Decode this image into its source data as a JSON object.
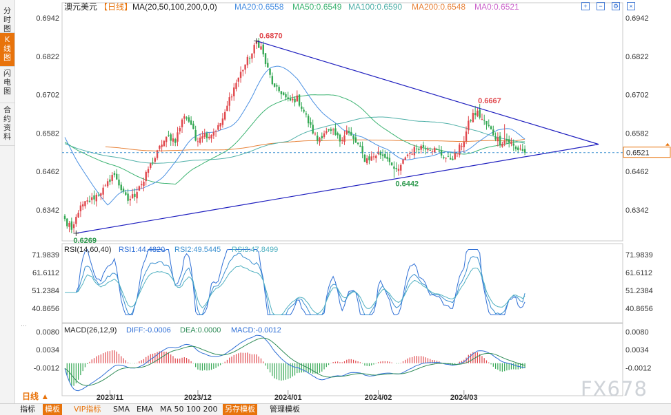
{
  "sidebar": {
    "tabs": [
      "分时图",
      "K线图",
      "闪电图",
      "合约资料"
    ],
    "active": 1
  },
  "header": {
    "symbol": "澳元美元",
    "period_tag": "【日线】",
    "ma_text": "MA(20,50,100,200,0,0)",
    "ma": [
      {
        "label": "MA20:0.6558",
        "color": "#4a90e2"
      },
      {
        "label": "MA50:0.6549",
        "color": "#3cb371"
      },
      {
        "label": "MA100:0.6590",
        "color": "#4fb0a8"
      },
      {
        "label": "MA200:0.6548",
        "color": "#e8833a"
      },
      {
        "label": "MA0:0.6521",
        "color": "#cc66cc"
      }
    ]
  },
  "colors": {
    "up": "#e0474c",
    "down": "#34a853",
    "trend": "#1f1fbf"
  },
  "chart_data": [
    {
      "type": "candlestick",
      "title": "澳元美元 日线",
      "x_ticks": [
        "2023/11",
        "2023/12",
        "2024/01",
        "2024/02",
        "2024/03"
      ],
      "y_ticks": [
        "0.6942",
        "0.6822",
        "0.6702",
        "0.6582",
        "0.6462",
        "0.6342"
      ],
      "ylim": [
        0.6245,
        0.6955
      ],
      "last_price": "0.6521",
      "high_label": "0.6870",
      "low_label": "0.6269",
      "mid_low_label": "0.6442",
      "recent_high_label": "0.6667",
      "anchors": [
        [
          0,
          0.631
        ],
        [
          1,
          0.6295
        ],
        [
          2,
          0.6298
        ],
        [
          3,
          0.6269
        ],
        [
          6,
          0.634
        ],
        [
          9,
          0.6362
        ],
        [
          12,
          0.6375
        ],
        [
          16,
          0.64
        ],
        [
          18,
          0.641
        ],
        [
          21,
          0.6452
        ],
        [
          23,
          0.644
        ],
        [
          26,
          0.639
        ],
        [
          28,
          0.6372
        ],
        [
          31,
          0.639
        ],
        [
          33,
          0.642
        ],
        [
          35,
          0.643
        ],
        [
          37,
          0.647
        ],
        [
          40,
          0.6505
        ],
        [
          43,
          0.655
        ],
        [
          46,
          0.657
        ],
        [
          49,
          0.656
        ],
        [
          53,
          0.664
        ],
        [
          56,
          0.661
        ],
        [
          58,
          0.656
        ],
        [
          61,
          0.658
        ],
        [
          64,
          0.6575
        ],
        [
          68,
          0.66
        ],
        [
          71,
          0.664
        ],
        [
          73,
          0.669
        ],
        [
          76,
          0.674
        ],
        [
          78,
          0.677
        ],
        [
          81,
          0.681
        ],
        [
          83,
          0.683
        ],
        [
          85,
          0.6868
        ],
        [
          87,
          0.685
        ],
        [
          89,
          0.68
        ],
        [
          91,
          0.676
        ],
        [
          93,
          0.672
        ],
        [
          96,
          0.671
        ],
        [
          99,
          0.668
        ],
        [
          103,
          0.669
        ],
        [
          106,
          0.665
        ],
        [
          109,
          0.66
        ],
        [
          112,
          0.656
        ],
        [
          115,
          0.6585
        ],
        [
          119,
          0.6582
        ],
        [
          122,
          0.656
        ],
        [
          125,
          0.659
        ],
        [
          128,
          0.656
        ],
        [
          130,
          0.6545
        ],
        [
          133,
          0.65
        ],
        [
          136,
          0.6505
        ],
        [
          139,
          0.652
        ],
        [
          142,
          0.651
        ],
        [
          144,
          0.65
        ],
        [
          146,
          0.646
        ],
        [
          149,
          0.6475
        ],
        [
          151,
          0.651
        ],
        [
          154,
          0.6525
        ],
        [
          157,
          0.654
        ],
        [
          161,
          0.654
        ],
        [
          164,
          0.653
        ],
        [
          167,
          0.6515
        ],
        [
          170,
          0.65
        ],
        [
          173,
          0.651
        ],
        [
          175,
          0.6535
        ],
        [
          177,
          0.656
        ],
        [
          179,
          0.661
        ],
        [
          181,
          0.664
        ],
        [
          183,
          0.6645
        ],
        [
          185,
          0.6625
        ],
        [
          188,
          0.66
        ],
        [
          191,
          0.657
        ],
        [
          193,
          0.6555
        ],
        [
          196,
          0.656
        ],
        [
          198,
          0.655
        ],
        [
          200,
          0.653
        ],
        [
          202,
          0.6535
        ],
        [
          204,
          0.6521
        ]
      ],
      "ma_levels": {
        "ma20": 0.6558,
        "ma50": 0.6549,
        "ma100": 0.659,
        "ma200": 0.6548
      }
    },
    {
      "type": "line",
      "title": "RSI(14,60,40)",
      "series": [
        {
          "name": "RSI1",
          "label": "RSI1:44.4820",
          "color": "#2f6fd6",
          "last": 44.482
        },
        {
          "name": "RSI2",
          "label": "RSI2:49.5445",
          "color": "#3a8fd0",
          "last": 49.5445
        },
        {
          "name": "RSI3",
          "label": "RSI3:47.8499",
          "color": "#4fb0c0",
          "last": 47.8499
        }
      ],
      "y_ticks": [
        "71.9839",
        "61.6112",
        "51.2384",
        "40.8656"
      ],
      "ylim": [
        36,
        76
      ]
    },
    {
      "type": "bar",
      "title": "MACD(26,12,9)",
      "series": [
        {
          "name": "DIFF",
          "label": "DIFF:-0.0006",
          "color": "#2f6fd6",
          "last": -0.0006
        },
        {
          "name": "DEA",
          "label": "DEA:0.0000",
          "color": "#2e8b57",
          "last": 0.0
        },
        {
          "name": "MACD",
          "label": "MACD:-0.0012",
          "color": "#2f6fd6",
          "last": -0.0012
        }
      ],
      "y_ticks": [
        "0.0080",
        "0.0034",
        "-0.0012"
      ],
      "ylim": [
        -0.0065,
        0.0092
      ]
    }
  ],
  "bottom": {
    "period_label": "日线 ▲",
    "items": [
      "指标",
      "模板",
      "VIP指标",
      "SMA",
      "EMA",
      "MA 50 100 200",
      "另存模板",
      "管理模板"
    ],
    "active_items": [
      1,
      6
    ]
  },
  "toolbar_icons": [
    "zoom-in-icon",
    "zoom-out-icon",
    "settings-icon",
    "close-icon"
  ],
  "watermark": "FX678"
}
